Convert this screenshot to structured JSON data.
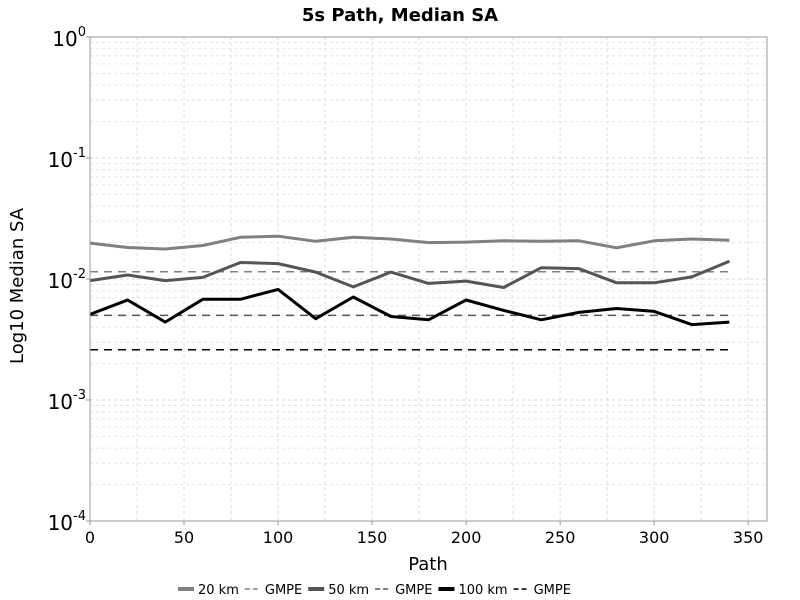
{
  "chart_data": {
    "type": "line",
    "title": "5s Path, Median SA",
    "xlabel": "Path",
    "ylabel": "Log10 Median SA",
    "xlim": [
      0,
      360
    ],
    "ylim": [
      0.0001,
      1
    ],
    "yscale": "log",
    "grid": true,
    "legend_position": "bottom",
    "x_ticks": [
      0,
      50,
      100,
      150,
      200,
      250,
      300,
      350
    ],
    "x_tick_labels": [
      "0",
      "50",
      "100",
      "150",
      "200",
      "250",
      "300",
      "350"
    ],
    "y_ticks": [
      {
        "value": 1,
        "base": "10",
        "exp": "0"
      },
      {
        "value": 0.1,
        "base": "10",
        "exp": "-1"
      },
      {
        "value": 0.01,
        "base": "10",
        "exp": "-2"
      },
      {
        "value": 0.001,
        "base": "10",
        "exp": "-3"
      },
      {
        "value": 0.0001,
        "base": "10",
        "exp": "-4"
      }
    ],
    "x": [
      0,
      20,
      40,
      60,
      80,
      100,
      120,
      140,
      160,
      180,
      200,
      220,
      240,
      260,
      280,
      300,
      320,
      340
    ],
    "series": [
      {
        "name": "20 km",
        "color": "#808080",
        "style": "solid",
        "width": 3,
        "values": [
          0.0198,
          0.0182,
          0.0177,
          0.0189,
          0.0221,
          0.0226,
          0.0205,
          0.0221,
          0.0214,
          0.02,
          0.0202,
          0.0207,
          0.0205,
          0.0207,
          0.0181,
          0.0207,
          0.0214,
          0.0209
        ]
      },
      {
        "name": "GMPE",
        "color": "#808080",
        "style": "dashed",
        "width": 1.5,
        "values": [
          0.0115,
          0.0115,
          0.0115,
          0.0115,
          0.0115,
          0.0115,
          0.0115,
          0.0115,
          0.0115,
          0.0115,
          0.0115,
          0.0115,
          0.0115,
          0.0115,
          0.0115,
          0.0115,
          0.0115,
          0.0115
        ]
      },
      {
        "name": "50 km",
        "color": "#555555",
        "style": "solid",
        "width": 3,
        "values": [
          0.0097,
          0.0108,
          0.0097,
          0.0103,
          0.0137,
          0.0134,
          0.0114,
          0.0086,
          0.0114,
          0.0092,
          0.0096,
          0.0085,
          0.0124,
          0.0122,
          0.0093,
          0.0093,
          0.0104,
          0.014
        ]
      },
      {
        "name": "GMPE",
        "color": "#555555",
        "style": "dashed",
        "width": 1.5,
        "values": [
          0.005,
          0.005,
          0.005,
          0.005,
          0.005,
          0.005,
          0.005,
          0.005,
          0.005,
          0.005,
          0.005,
          0.005,
          0.005,
          0.005,
          0.005,
          0.005,
          0.005,
          0.005
        ]
      },
      {
        "name": "100 km",
        "color": "#000000",
        "style": "solid",
        "width": 3,
        "values": [
          0.0051,
          0.0067,
          0.0044,
          0.0068,
          0.0068,
          0.0082,
          0.0047,
          0.0071,
          0.0049,
          0.0046,
          0.0067,
          0.0055,
          0.0046,
          0.0053,
          0.0057,
          0.0054,
          0.0042,
          0.0044
        ]
      },
      {
        "name": "GMPE",
        "color": "#000000",
        "style": "dashed",
        "width": 1.5,
        "values": [
          0.0026,
          0.0026,
          0.0026,
          0.0026,
          0.0026,
          0.0026,
          0.0026,
          0.0026,
          0.0026,
          0.0026,
          0.0026,
          0.0026,
          0.0026,
          0.0026,
          0.0026,
          0.0026,
          0.0026,
          0.0026
        ]
      }
    ]
  }
}
